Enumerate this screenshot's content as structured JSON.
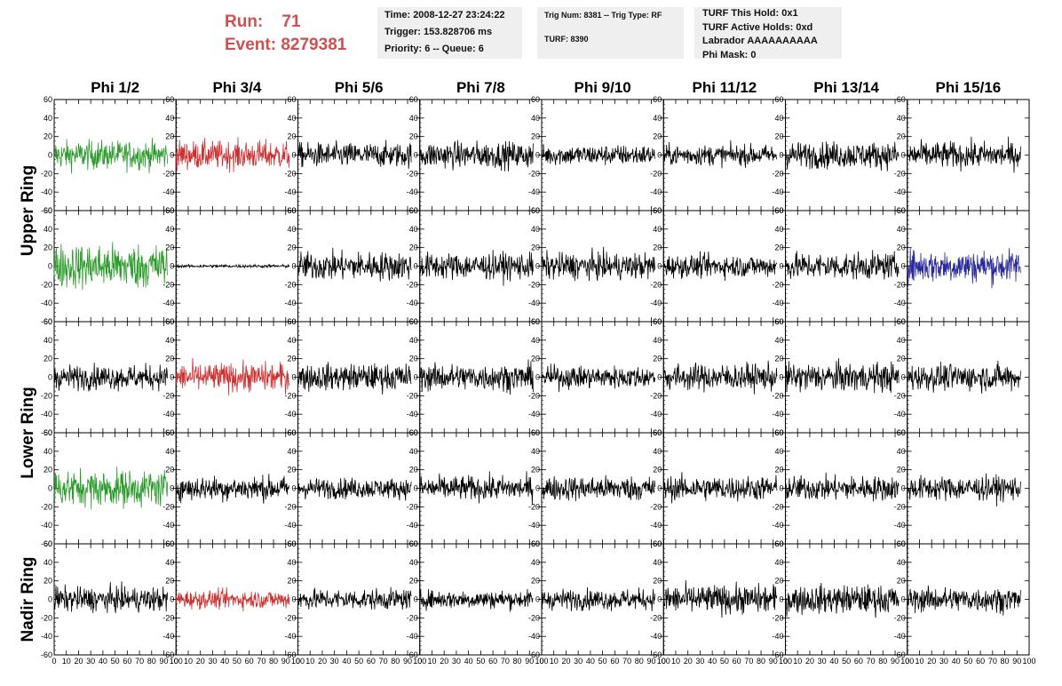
{
  "header": {
    "run_label": "Run:",
    "run_value": "71",
    "event_label": "Event:",
    "event_value": "8279381"
  },
  "info_boxes": {
    "time": "Time: 2008-12-27 23:24:22",
    "trigger": "Trigger: 153.828706 ms",
    "priority": "Priority: 6 -- Queue: 6",
    "trig_num": "Trig Num: 8381 -- Trig Type: RF",
    "turf": "TURF: 8390",
    "turf_this_hold": "TURF This Hold: 0x1",
    "turf_active_holds": "TURF Active Holds: 0xd",
    "labrador": "Labrador AAAAAAAAAA",
    "phi_mask": "Phi Mask: 0"
  },
  "columns": [
    "Phi 1/2",
    "Phi 3/4",
    "Phi 5/6",
    "Phi 7/8",
    "Phi 9/10",
    "Phi 11/12",
    "Phi 13/14",
    "Phi 15/16"
  ],
  "ring_labels": [
    "Upper Ring",
    "Lower Ring",
    "Nadir Ring"
  ],
  "chart_data": {
    "type": "line",
    "description_rows": 5,
    "xlim": [
      0,
      100
    ],
    "ylim": [
      -60,
      60
    ],
    "x_tick_labels": [
      "0",
      "10",
      "20",
      "30",
      "40",
      "50",
      "60",
      "70",
      "80",
      "90",
      "100"
    ],
    "y_tick_labels": [
      "-60",
      "-40",
      "-20",
      "0",
      "20",
      "40",
      "60"
    ],
    "row_ring_group": [
      "Upper Ring",
      "Upper Ring",
      "Lower Ring",
      "Lower Ring",
      "Nadir Ring"
    ],
    "colors": {
      "default": "#000000",
      "green": "#2a9a2a",
      "red": "#cc3030",
      "blue": "#2a2a9a"
    },
    "panels": [
      [
        {
          "color": "green",
          "amp": 14
        },
        {
          "color": "red",
          "amp": 14
        },
        {
          "color": "default",
          "amp": 12
        },
        {
          "color": "default",
          "amp": 13
        },
        {
          "color": "default",
          "amp": 10
        },
        {
          "color": "default",
          "amp": 10
        },
        {
          "color": "default",
          "amp": 13
        },
        {
          "color": "default",
          "amp": 13
        }
      ],
      [
        {
          "color": "green",
          "amp": 22
        },
        {
          "color": "default",
          "amp": 1.5
        },
        {
          "color": "default",
          "amp": 14
        },
        {
          "color": "default",
          "amp": 13
        },
        {
          "color": "default",
          "amp": 13
        },
        {
          "color": "default",
          "amp": 11
        },
        {
          "color": "default",
          "amp": 13
        },
        {
          "color": "blue",
          "amp": 16
        }
      ],
      [
        {
          "color": "default",
          "amp": 12
        },
        {
          "color": "red",
          "amp": 14
        },
        {
          "color": "default",
          "amp": 13
        },
        {
          "color": "default",
          "amp": 13
        },
        {
          "color": "default",
          "amp": 11
        },
        {
          "color": "default",
          "amp": 13
        },
        {
          "color": "default",
          "amp": 14
        },
        {
          "color": "default",
          "amp": 13
        }
      ],
      [
        {
          "color": "green",
          "amp": 18
        },
        {
          "color": "default",
          "amp": 12
        },
        {
          "color": "default",
          "amp": 10
        },
        {
          "color": "default",
          "amp": 12
        },
        {
          "color": "default",
          "amp": 12
        },
        {
          "color": "default",
          "amp": 12
        },
        {
          "color": "default",
          "amp": 12
        },
        {
          "color": "default",
          "amp": 12
        }
      ],
      [
        {
          "color": "default",
          "amp": 12
        },
        {
          "color": "red",
          "amp": 9
        },
        {
          "color": "default",
          "amp": 10
        },
        {
          "color": "default",
          "amp": 9
        },
        {
          "color": "default",
          "amp": 10
        },
        {
          "color": "default",
          "amp": 14
        },
        {
          "color": "default",
          "amp": 14
        },
        {
          "color": "default",
          "amp": 12
        }
      ]
    ]
  }
}
